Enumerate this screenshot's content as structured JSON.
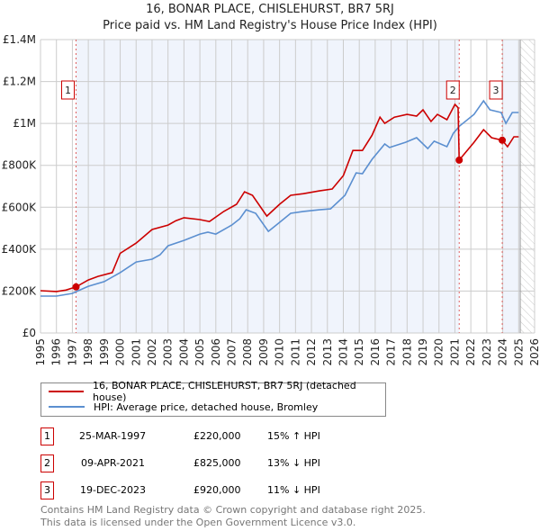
{
  "chart_data": {
    "type": "line",
    "title": "16, BONAR PLACE, CHISLEHURST, BR7 5RJ",
    "subtitle": "Price paid vs. HM Land Registry's House Price Index (HPI)",
    "xlim": [
      1995,
      2026
    ],
    "ylim": [
      0,
      1400000
    ],
    "x_ticks": [
      "1995",
      "1996",
      "1997",
      "1998",
      "1999",
      "2000",
      "2001",
      "2002",
      "2003",
      "2004",
      "2005",
      "2006",
      "2007",
      "2008",
      "2009",
      "2010",
      "2011",
      "2012",
      "2013",
      "2014",
      "2015",
      "2016",
      "2017",
      "2018",
      "2019",
      "2020",
      "2021",
      "2022",
      "2023",
      "2024",
      "2025",
      "2026"
    ],
    "y_ticks": [
      {
        "v": 0,
        "label": "£0"
      },
      {
        "v": 200000,
        "label": "£200K"
      },
      {
        "v": 400000,
        "label": "£400K"
      },
      {
        "v": 600000,
        "label": "£600K"
      },
      {
        "v": 800000,
        "label": "£800K"
      },
      {
        "v": 1000000,
        "label": "£1M"
      },
      {
        "v": 1200000,
        "label": "£1.2M"
      },
      {
        "v": 1400000,
        "label": "£1.4M"
      }
    ],
    "grid": true,
    "data_end": 2025.1,
    "series": [
      {
        "name": "16, BONAR PLACE, CHISLEHURST, BR7 5RJ (detached house)",
        "color": "#cc0000",
        "x": [
          1995,
          1996,
          1996.6,
          1997.23,
          1998,
          1998.6,
          1999.5,
          2000,
          2001,
          2002,
          2003,
          2003.5,
          2004,
          2005,
          2005.6,
          2006.5,
          2007.3,
          2007.8,
          2008.3,
          2009.2,
          2010,
          2010.7,
          2011.5,
          2012.5,
          2013.3,
          2014,
          2014.6,
          2015.2,
          2015.8,
          2016.3,
          2016.6,
          2017.2,
          2018,
          2018.6,
          2019,
          2019.5,
          2019.9,
          2020.5,
          2021.0,
          2021.2,
          2021.27,
          2022.2,
          2022.8,
          2023.3,
          2023.97,
          2024.3,
          2024.7,
          2025.0
        ],
        "y": [
          202000,
          198000,
          205000,
          220000,
          253000,
          270000,
          288000,
          380000,
          429000,
          494000,
          515000,
          536000,
          550000,
          541000,
          532000,
          580000,
          614000,
          674000,
          657000,
          558000,
          614000,
          657000,
          665000,
          678000,
          687000,
          751000,
          871000,
          871000,
          944000,
          1030000,
          1000000,
          1030000,
          1043000,
          1035000,
          1065000,
          1009000,
          1043000,
          1018000,
          1091000,
          1075000,
          825000,
          910000,
          970000,
          932000,
          920000,
          889000,
          936000,
          936000
        ]
      },
      {
        "name": "HPI: Average price, detached house, Bromley",
        "color": "#5b8fd0",
        "x": [
          1995,
          1996,
          1997,
          1997.5,
          1998,
          1999,
          2000,
          2001,
          2002,
          2002.5,
          2003,
          2004,
          2005,
          2005.5,
          2006,
          2007,
          2007.5,
          2007.9,
          2008.5,
          2009.3,
          2010,
          2010.7,
          2011.5,
          2012.5,
          2013.2,
          2014.1,
          2014.8,
          2015.2,
          2015.8,
          2016.6,
          2016.9,
          2017.9,
          2018.6,
          2019.3,
          2019.7,
          2020.5,
          2020.9,
          2021.3,
          2022.2,
          2022.8,
          2023.2,
          2023.9,
          2024.2,
          2024.6,
          2025.0
        ],
        "y": [
          176000,
          176000,
          189000,
          206000,
          223000,
          245000,
          288000,
          339000,
          352000,
          373000,
          416000,
          442000,
          472000,
          481000,
          472000,
          515000,
          545000,
          588000,
          571000,
          485000,
          528000,
          571000,
          580000,
          588000,
          592000,
          657000,
          764000,
          760000,
          829000,
          902000,
          885000,
          910000,
          932000,
          880000,
          915000,
          889000,
          953000,
          988000,
          1043000,
          1108000,
          1065000,
          1052000,
          1000000,
          1052000,
          1052000
        ]
      }
    ],
    "sales": [
      {
        "n": "1",
        "x": 1997.23,
        "y": 220000,
        "date": "25-MAR-1997",
        "price": "£220,000",
        "hpi": "15% ↑ HPI"
      },
      {
        "n": "2",
        "x": 2021.27,
        "y": 825000,
        "date": "09-APR-2021",
        "price": "£825,000",
        "hpi": "13% ↓ HPI"
      },
      {
        "n": "3",
        "x": 2023.97,
        "y": 920000,
        "date": "19-DEC-2023",
        "price": "£920,000",
        "hpi": "11% ↓ HPI"
      }
    ]
  },
  "footer": {
    "line1": "Contains HM Land Registry data © Crown copyright and database right 2025.",
    "line2": "This data is licensed under the Open Government Licence v3.0."
  }
}
